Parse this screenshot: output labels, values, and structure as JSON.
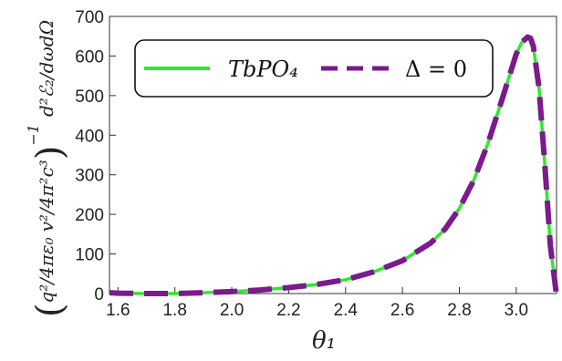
{
  "chart_data": {
    "type": "line",
    "title": "",
    "xlabel": "θ₁",
    "ylabel": "(q²/4πε₀ · v²/4π²c³)⁻¹ d²ℰ₂/dωdΩ",
    "xlim": [
      1.57,
      3.1416
    ],
    "ylim": [
      0,
      700
    ],
    "xticks": [
      1.6,
      1.8,
      2.0,
      2.2,
      2.4,
      2.6,
      2.8,
      3.0
    ],
    "xtick_labels": [
      "1.6",
      "1.8",
      "2.0",
      "2.2",
      "2.4",
      "2.6",
      "2.8",
      "3.0"
    ],
    "yticks": [
      0,
      100,
      200,
      300,
      400,
      500,
      600,
      700
    ],
    "ytick_labels": [
      "0",
      "100",
      "200",
      "300",
      "400",
      "500",
      "600",
      "700"
    ],
    "grid": false,
    "legend_position": "top",
    "legend": [
      "TbPO₄",
      "Δ = 0"
    ],
    "series": [
      {
        "name": "TbPO₄",
        "color": "#2ee82e",
        "style": "solid",
        "x": [
          1.57,
          1.6,
          1.7,
          1.8,
          1.9,
          2.0,
          2.1,
          2.2,
          2.3,
          2.4,
          2.5,
          2.6,
          2.7,
          2.75,
          2.8,
          2.85,
          2.9,
          2.95,
          3.0,
          3.02,
          3.04,
          3.05,
          3.06,
          3.08,
          3.1,
          3.12,
          3.14
        ],
        "y": [
          2,
          1,
          0,
          0,
          2,
          5,
          9,
          15,
          23,
          35,
          55,
          83,
          128,
          163,
          215,
          285,
          378,
          490,
          605,
          635,
          648,
          645,
          625,
          520,
          330,
          120,
          5
        ]
      },
      {
        "name": "Δ = 0",
        "color": "#7a1a8c",
        "style": "dashed",
        "x": [
          1.57,
          1.6,
          1.7,
          1.8,
          1.9,
          2.0,
          2.1,
          2.2,
          2.3,
          2.4,
          2.5,
          2.6,
          2.7,
          2.75,
          2.8,
          2.85,
          2.9,
          2.95,
          3.0,
          3.02,
          3.04,
          3.05,
          3.06,
          3.08,
          3.1,
          3.12,
          3.14
        ],
        "y": [
          2,
          1,
          0,
          0,
          2,
          5,
          9,
          15,
          23,
          35,
          55,
          83,
          128,
          163,
          215,
          285,
          378,
          490,
          605,
          635,
          648,
          645,
          625,
          520,
          330,
          120,
          5
        ]
      }
    ]
  }
}
